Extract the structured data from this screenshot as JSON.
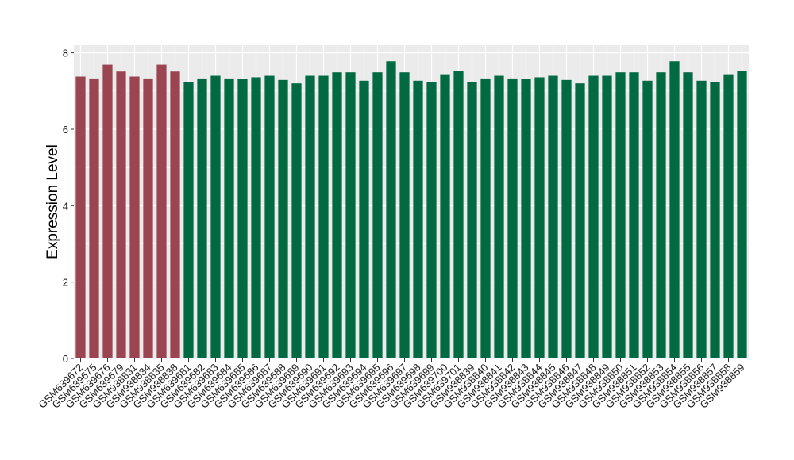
{
  "chart_data": {
    "type": "bar",
    "ylabel": "Expression Level",
    "xlabel": "",
    "ylim": [
      0,
      8.2
    ],
    "yticks": [
      0,
      2,
      4,
      6,
      8
    ],
    "grid": true,
    "legend": "none",
    "colors": {
      "group_a": "#9b4452",
      "group_b": "#016a42",
      "panel_bg": "#ebebeb",
      "grid": "#ffffff"
    },
    "categories": [
      "GSM639672",
      "GSM639675",
      "GSM639676",
      "GSM639679",
      "GSM938831",
      "GSM938834",
      "GSM938835",
      "GSM938838",
      "GSM639681",
      "GSM639682",
      "GSM639683",
      "GSM639684",
      "GSM639685",
      "GSM639686",
      "GSM639687",
      "GSM639688",
      "GSM639689",
      "GSM639690",
      "GSM639691",
      "GSM639692",
      "GSM639693",
      "GSM639694",
      "GSM639695",
      "GSM639696",
      "GSM639697",
      "GSM639698",
      "GSM639699",
      "GSM639700",
      "GSM639701",
      "GSM938839",
      "GSM938840",
      "GSM938841",
      "GSM938842",
      "GSM938843",
      "GSM938844",
      "GSM938845",
      "GSM938846",
      "GSM938847",
      "GSM938848",
      "GSM938849",
      "GSM938850",
      "GSM938851",
      "GSM938852",
      "GSM938853",
      "GSM938854",
      "GSM938855",
      "GSM938856",
      "GSM938857",
      "GSM938858",
      "GSM938859"
    ],
    "values": [
      7.38,
      7.33,
      7.69,
      7.51,
      7.38,
      7.33,
      7.69,
      7.51,
      7.24,
      7.33,
      7.4,
      7.33,
      7.31,
      7.36,
      7.4,
      7.29,
      7.2,
      7.4,
      7.4,
      7.49,
      7.49,
      7.27,
      7.49,
      7.78,
      7.49,
      7.27,
      7.24,
      7.44,
      7.53,
      7.24,
      7.33,
      7.4,
      7.33,
      7.31,
      7.36,
      7.4,
      7.29,
      7.2,
      7.4,
      7.4,
      7.49,
      7.49,
      7.27,
      7.49,
      7.78,
      7.49,
      7.27,
      7.24,
      7.44,
      7.53
    ],
    "groups": [
      "a",
      "a",
      "a",
      "a",
      "a",
      "a",
      "a",
      "a",
      "b",
      "b",
      "b",
      "b",
      "b",
      "b",
      "b",
      "b",
      "b",
      "b",
      "b",
      "b",
      "b",
      "b",
      "b",
      "b",
      "b",
      "b",
      "b",
      "b",
      "b",
      "b",
      "b",
      "b",
      "b",
      "b",
      "b",
      "b",
      "b",
      "b",
      "b",
      "b",
      "b",
      "b",
      "b",
      "b",
      "b",
      "b",
      "b",
      "b",
      "b",
      "b"
    ]
  }
}
